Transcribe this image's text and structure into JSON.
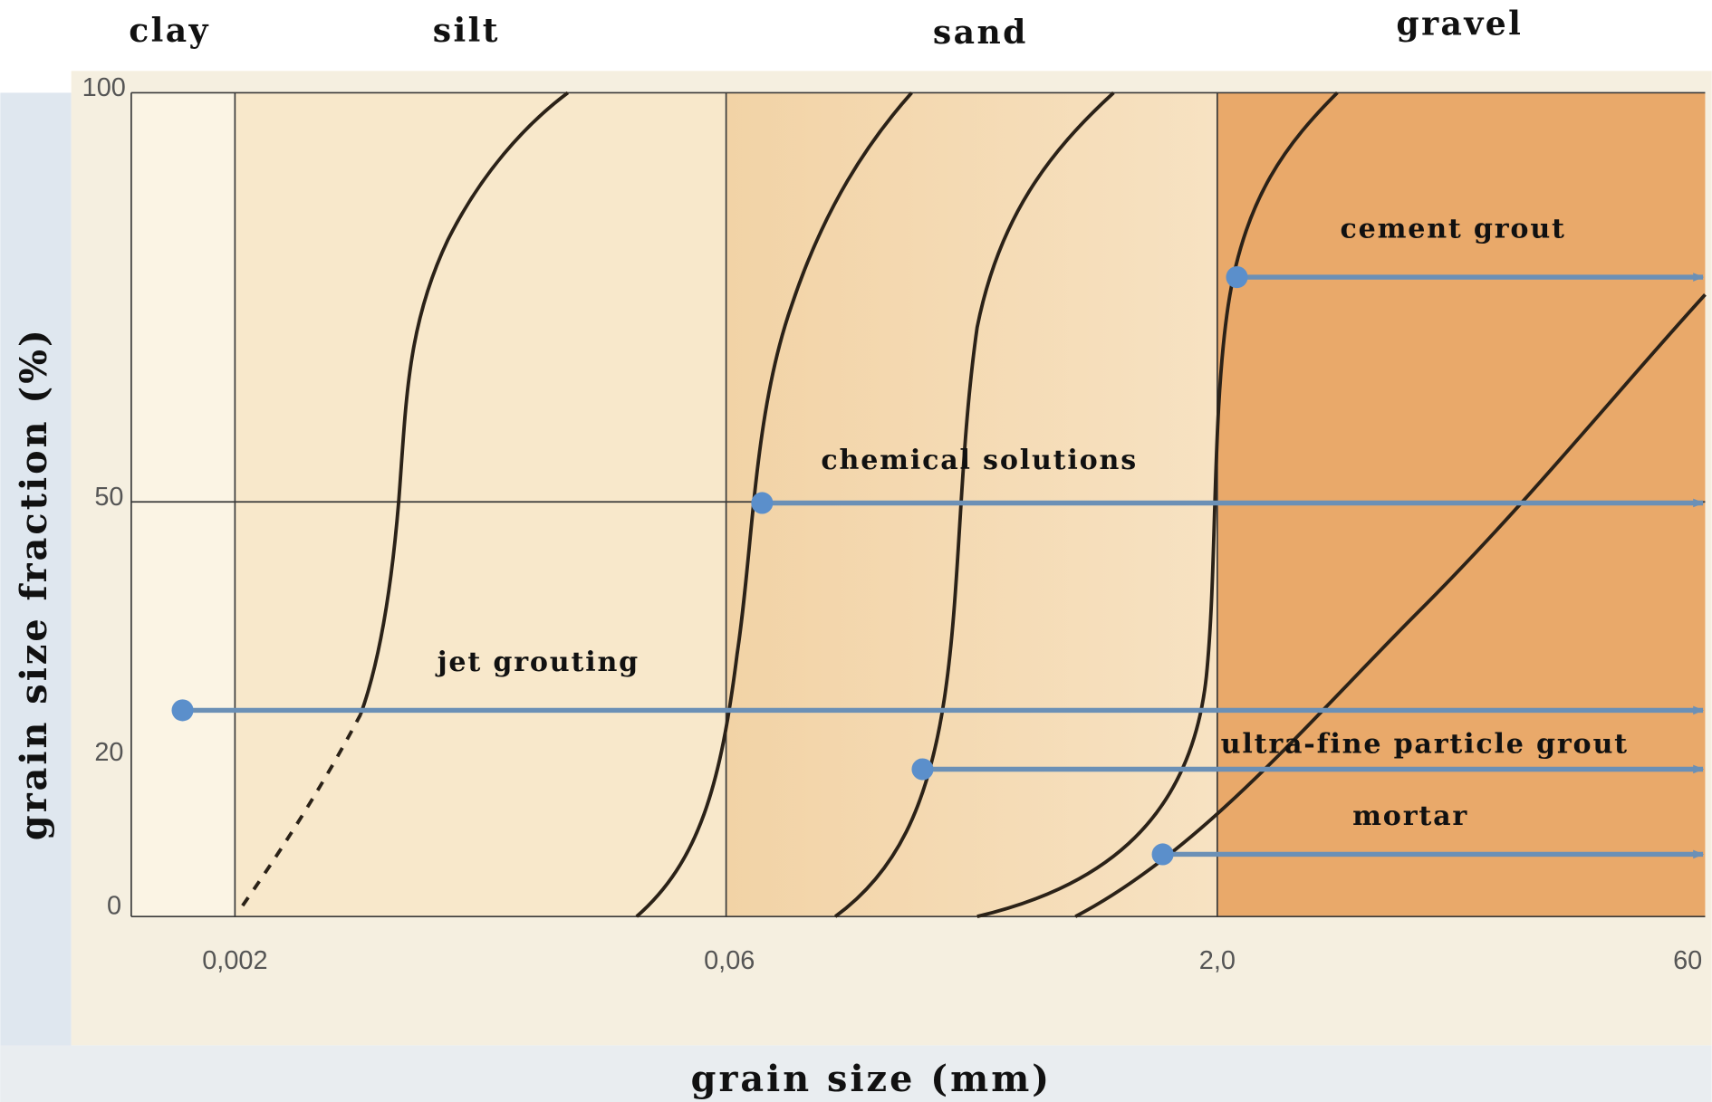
{
  "zones": [
    "clay",
    "silt",
    "sand",
    "gravel"
  ],
  "y_axis": {
    "title": "grain size fraction (%)",
    "ticks": [
      "100",
      "50",
      "20",
      "0"
    ]
  },
  "x_axis": {
    "title": "grain size (mm)",
    "ticks": [
      "0,002",
      "0,06",
      "2,0",
      "60"
    ]
  },
  "methods": [
    "cement grout",
    "chemical solutions",
    "jet grouting",
    "ultra-fine particle grout",
    "mortar"
  ]
}
